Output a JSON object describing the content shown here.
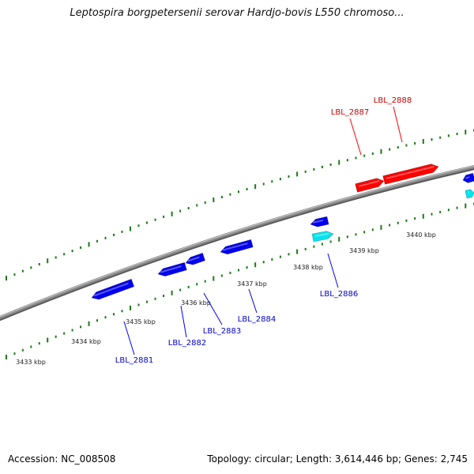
{
  "header": {
    "title": "Leptospira borgpetersenii serovar Hardjo-bovis L550 chromoso..."
  },
  "footer": {
    "accession": "Accession: NC_008508",
    "summary": "Topology: circular; Length: 3,614,446 bp; Genes: 2,745"
  },
  "colors": {
    "backbone": "#8a8a8a",
    "ticks": "#1a7a1a",
    "forward_gene": "#ff0000",
    "reverse_gene": "#0000ee",
    "reverse_gene_alt": "#00e5ee",
    "forward_label": "#cc0000",
    "reverse_label": "#0000cc"
  },
  "scale_labels": [
    "3433 kbp",
    "3434 kbp",
    "3435 kbp",
    "3436 kbp",
    "3437 kbp",
    "3438 kbp",
    "3439 kbp",
    "3440 kbp"
  ],
  "genes": [
    {
      "id": "LBL_2881",
      "strand": "reverse",
      "labeled": true
    },
    {
      "id": "LBL_2882",
      "strand": "reverse",
      "labeled": true
    },
    {
      "id": "LBL_2883",
      "strand": "reverse",
      "labeled": true
    },
    {
      "id": "LBL_2884",
      "strand": "reverse",
      "labeled": true
    },
    {
      "id": "LBL_2885",
      "strand": "reverse",
      "labeled": false
    },
    {
      "id": "LBL_2886",
      "strand": "reverse",
      "labeled": true
    },
    {
      "id": "LBL_2887",
      "strand": "forward",
      "labeled": true
    },
    {
      "id": "LBL_2888",
      "strand": "forward",
      "labeled": true
    },
    {
      "id": "edge-forward",
      "strand": "reverse",
      "labeled": false
    },
    {
      "id": "edge-reverse",
      "strand": "reverse",
      "labeled": false
    }
  ]
}
